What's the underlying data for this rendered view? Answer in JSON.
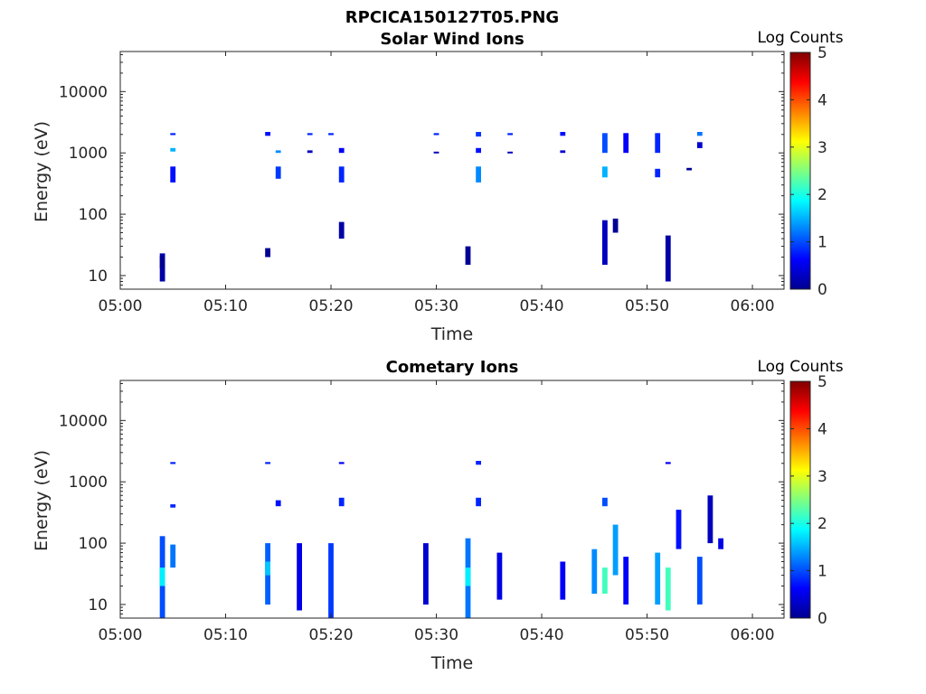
{
  "figure": {
    "title": "RPCICA150127T05.PNG",
    "colorbar": {
      "label": "Log Counts",
      "range": [
        0,
        5
      ],
      "ticks": [
        "0",
        "1",
        "2",
        "3",
        "4",
        "5"
      ],
      "colormap": "jet"
    }
  },
  "chart_data": [
    {
      "type": "heatmap",
      "title": "Solar Wind Ions",
      "xlabel": "Time",
      "ylabel": "Energy (eV)",
      "xlim": [
        "05:00",
        "06:03"
      ],
      "ylim": [
        6,
        45000
      ],
      "yscale": "log",
      "x_ticks": [
        "05:00",
        "05:10",
        "05:20",
        "05:30",
        "05:40",
        "05:50",
        "06:00"
      ],
      "y_ticks": [
        "10",
        "100",
        "1000",
        "10000"
      ],
      "clim": [
        0,
        5
      ],
      "cells": [
        [
          "05:04",
          8,
          23,
          0.2
        ],
        [
          "05:04",
          13,
          21,
          0.1
        ],
        [
          "05:05",
          330,
          600,
          0.7
        ],
        [
          "05:05",
          1950,
          2100,
          0.8
        ],
        [
          "05:05",
          1050,
          1200,
          1.5
        ],
        [
          "05:14",
          20,
          28,
          0.1
        ],
        [
          "05:14",
          1900,
          2200,
          0.7
        ],
        [
          "05:15",
          380,
          600,
          0.9
        ],
        [
          "05:15",
          1000,
          1100,
          1.3
        ],
        [
          "05:18",
          1950,
          2100,
          0.8
        ],
        [
          "05:18",
          1000,
          1100,
          0.3
        ],
        [
          "05:20",
          1950,
          2100,
          0.8
        ],
        [
          "05:21",
          330,
          600,
          0.8
        ],
        [
          "05:21",
          1000,
          1200,
          0.6
        ],
        [
          "05:21",
          40,
          75,
          0.2
        ],
        [
          "05:30",
          1950,
          2100,
          0.8
        ],
        [
          "05:30",
          1000,
          1050,
          0.3
        ],
        [
          "05:33",
          15,
          30,
          0.1
        ],
        [
          "05:34",
          330,
          600,
          1.3
        ],
        [
          "05:34",
          1850,
          2200,
          0.9
        ],
        [
          "05:34",
          1000,
          1200,
          0.7
        ],
        [
          "05:37",
          1950,
          2100,
          0.8
        ],
        [
          "05:37",
          1000,
          1050,
          0.3
        ],
        [
          "05:42",
          1900,
          2200,
          0.7
        ],
        [
          "05:42",
          1000,
          1100,
          0.4
        ],
        [
          "05:46",
          400,
          600,
          1.5
        ],
        [
          "05:46",
          15,
          80,
          0.3
        ],
        [
          "05:46",
          1000,
          2100,
          1.0
        ],
        [
          "05:47",
          50,
          85,
          0.1
        ],
        [
          "05:48",
          1000,
          2100,
          0.6
        ],
        [
          "05:51",
          1000,
          2100,
          0.8
        ],
        [
          "05:51",
          400,
          550,
          0.8
        ],
        [
          "05:52",
          8,
          45,
          0.2
        ],
        [
          "05:54",
          520,
          570,
          0.1
        ],
        [
          "05:55",
          1900,
          2200,
          1.2
        ],
        [
          "05:55",
          1200,
          1500,
          0.4
        ]
      ]
    },
    {
      "type": "heatmap",
      "title": "Cometary Ions",
      "xlabel": "Time",
      "ylabel": "Energy (eV)",
      "xlim": [
        "05:00",
        "06:03"
      ],
      "ylim": [
        6,
        45000
      ],
      "yscale": "log",
      "x_ticks": [
        "05:00",
        "05:10",
        "05:20",
        "05:30",
        "05:40",
        "05:50",
        "06:00"
      ],
      "y_ticks": [
        "10",
        "100",
        "1000",
        "10000"
      ],
      "clim": [
        0,
        5
      ],
      "cells": [
        [
          "05:04",
          6,
          130,
          1.0
        ],
        [
          "05:04",
          20,
          40,
          1.8
        ],
        [
          "05:05",
          40,
          95,
          1.2
        ],
        [
          "05:05",
          1950,
          2100,
          0.8
        ],
        [
          "05:05",
          380,
          430,
          0.8
        ],
        [
          "05:14",
          10,
          100,
          1.1
        ],
        [
          "05:14",
          30,
          50,
          1.6
        ],
        [
          "05:14",
          1950,
          2100,
          0.8
        ],
        [
          "05:15",
          400,
          500,
          0.7
        ],
        [
          "05:17",
          8,
          100,
          0.5
        ],
        [
          "05:20",
          6,
          100,
          0.9
        ],
        [
          "05:21",
          400,
          550,
          0.8
        ],
        [
          "05:21",
          1950,
          2100,
          0.6
        ],
        [
          "05:29",
          10,
          100,
          0.4
        ],
        [
          "05:33",
          6,
          120,
          1.2
        ],
        [
          "05:33",
          20,
          40,
          1.8
        ],
        [
          "05:34",
          1900,
          2200,
          0.8
        ],
        [
          "05:34",
          400,
          550,
          0.8
        ],
        [
          "05:36",
          12,
          70,
          0.5
        ],
        [
          "05:42",
          12,
          50,
          0.6
        ],
        [
          "05:45",
          15,
          80,
          1.3
        ],
        [
          "05:46",
          15,
          40,
          2.2
        ],
        [
          "05:46",
          400,
          550,
          1.0
        ],
        [
          "05:47",
          30,
          200,
          1.4
        ],
        [
          "05:48",
          10,
          60,
          0.6
        ],
        [
          "05:51",
          10,
          70,
          1.4
        ],
        [
          "05:52",
          8,
          40,
          2.2
        ],
        [
          "05:52",
          1950,
          2100,
          0.6
        ],
        [
          "05:53",
          80,
          350,
          0.7
        ],
        [
          "05:55",
          10,
          60,
          1.0
        ],
        [
          "05:56",
          100,
          600,
          0.3
        ],
        [
          "05:57",
          80,
          120,
          0.5
        ]
      ]
    }
  ]
}
